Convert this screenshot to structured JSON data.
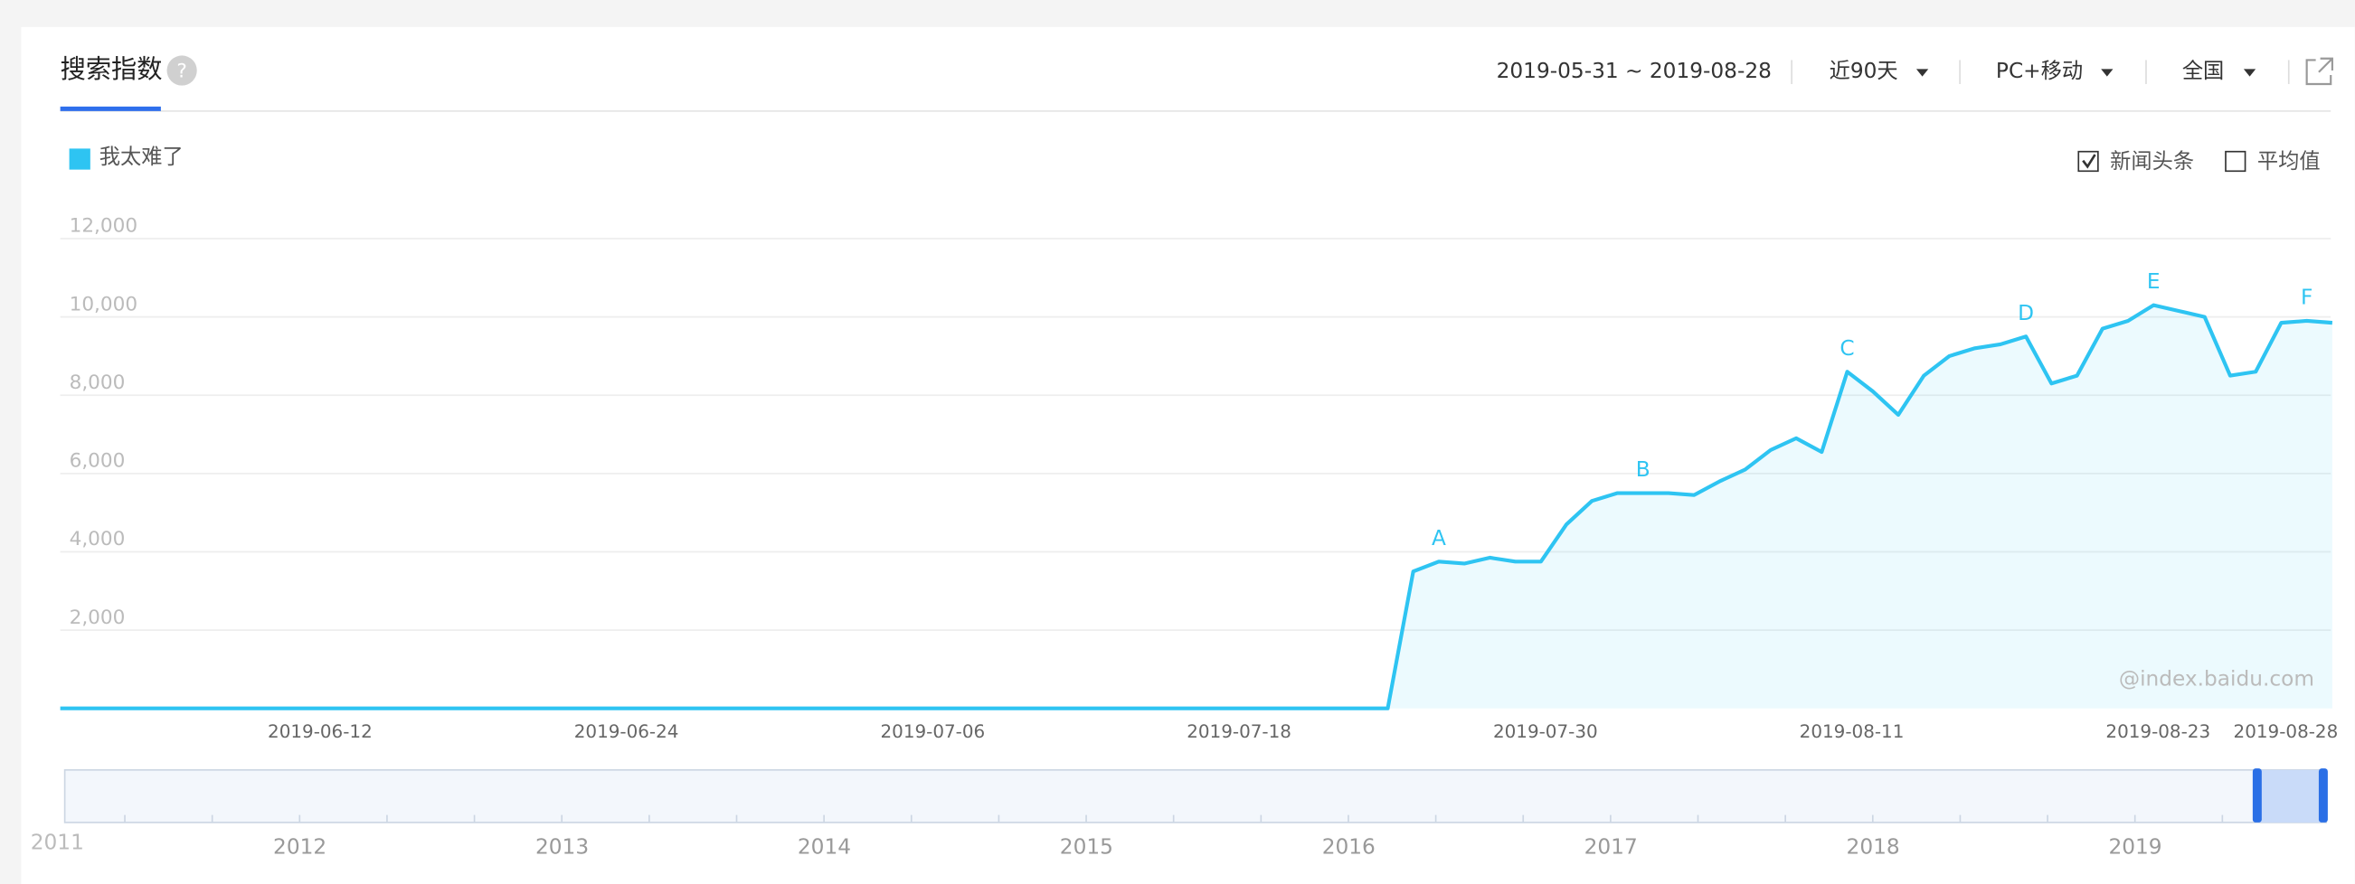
{
  "header": {
    "title": "搜索指数",
    "help": "?",
    "date_range": "2019-05-31 ~ 2019-08-28",
    "period": "近90天",
    "device": "PC+移动",
    "region": "全国"
  },
  "options": {
    "news": "新闻头条",
    "news_checked": true,
    "average": "平均值",
    "average_checked": false
  },
  "watermark": "@index.baidu.com",
  "navigator": {
    "years": [
      "2011",
      "2012",
      "2013",
      "2014",
      "2015",
      "2016",
      "2017",
      "2018",
      "2019"
    ]
  },
  "chart_data": {
    "type": "line",
    "x": [
      "2019-05-31",
      "2019-06-01",
      "2019-06-02",
      "2019-06-03",
      "2019-06-04",
      "2019-06-05",
      "2019-06-06",
      "2019-06-07",
      "2019-06-08",
      "2019-06-09",
      "2019-06-10",
      "2019-06-11",
      "2019-06-12",
      "2019-06-13",
      "2019-06-14",
      "2019-06-15",
      "2019-06-16",
      "2019-06-17",
      "2019-06-18",
      "2019-06-19",
      "2019-06-20",
      "2019-06-21",
      "2019-06-22",
      "2019-06-23",
      "2019-06-24",
      "2019-06-25",
      "2019-06-26",
      "2019-06-27",
      "2019-06-28",
      "2019-06-29",
      "2019-06-30",
      "2019-07-01",
      "2019-07-02",
      "2019-07-03",
      "2019-07-04",
      "2019-07-05",
      "2019-07-06",
      "2019-07-07",
      "2019-07-08",
      "2019-07-09",
      "2019-07-10",
      "2019-07-11",
      "2019-07-12",
      "2019-07-13",
      "2019-07-14",
      "2019-07-15",
      "2019-07-16",
      "2019-07-17",
      "2019-07-18",
      "2019-07-19",
      "2019-07-20",
      "2019-07-21",
      "2019-07-22",
      "2019-07-23",
      "2019-07-24",
      "2019-07-25",
      "2019-07-26",
      "2019-07-27",
      "2019-07-28",
      "2019-07-29",
      "2019-07-30",
      "2019-07-31",
      "2019-08-01",
      "2019-08-02",
      "2019-08-03",
      "2019-08-04",
      "2019-08-05",
      "2019-08-06",
      "2019-08-07",
      "2019-08-08",
      "2019-08-09",
      "2019-08-10",
      "2019-08-11",
      "2019-08-12",
      "2019-08-13",
      "2019-08-14",
      "2019-08-15",
      "2019-08-16",
      "2019-08-17",
      "2019-08-18",
      "2019-08-19",
      "2019-08-20",
      "2019-08-21",
      "2019-08-22",
      "2019-08-23",
      "2019-08-24",
      "2019-08-25",
      "2019-08-26",
      "2019-08-27",
      "2019-08-28"
    ],
    "series": [
      {
        "name": "我太难了",
        "color": "#2ec4f2",
        "values": [
          0,
          0,
          0,
          0,
          0,
          0,
          0,
          0,
          0,
          0,
          0,
          0,
          0,
          0,
          0,
          0,
          0,
          0,
          0,
          0,
          0,
          0,
          0,
          0,
          0,
          0,
          0,
          0,
          0,
          0,
          0,
          0,
          0,
          0,
          0,
          0,
          0,
          0,
          0,
          0,
          0,
          0,
          0,
          0,
          0,
          0,
          0,
          0,
          0,
          0,
          0,
          0,
          0,
          3500,
          3750,
          3700,
          3850,
          3750,
          3750,
          4700,
          5300,
          5500,
          5500,
          5500,
          5450,
          5800,
          6100,
          6600,
          6900,
          6550,
          8600,
          8100,
          7500,
          8500,
          9000,
          9200,
          9300,
          9500,
          8300,
          8500,
          9700,
          9900,
          10300,
          10150,
          10000,
          8500,
          8600,
          9850,
          9900,
          9850
        ]
      }
    ],
    "xticks": [
      "2019-06-12",
      "2019-06-24",
      "2019-07-06",
      "2019-07-18",
      "2019-07-30",
      "2019-08-11",
      "2019-08-23",
      "2019-08-28"
    ],
    "ylim": [
      0,
      12000
    ],
    "yticks": [
      {
        "value": 2000,
        "label": "2,000"
      },
      {
        "value": 4000,
        "label": "4,000"
      },
      {
        "value": 6000,
        "label": "6,000"
      },
      {
        "value": 8000,
        "label": "8,000"
      },
      {
        "value": 10000,
        "label": "10,000"
      },
      {
        "value": 12000,
        "label": "12,000"
      }
    ],
    "grid": true,
    "annotations": [
      {
        "label": "A",
        "x": "2019-07-24"
      },
      {
        "label": "B",
        "x": "2019-08-01"
      },
      {
        "label": "C",
        "x": "2019-08-09"
      },
      {
        "label": "D",
        "x": "2019-08-16"
      },
      {
        "label": "E",
        "x": "2019-08-21"
      },
      {
        "label": "F",
        "x": "2019-08-27"
      }
    ]
  }
}
